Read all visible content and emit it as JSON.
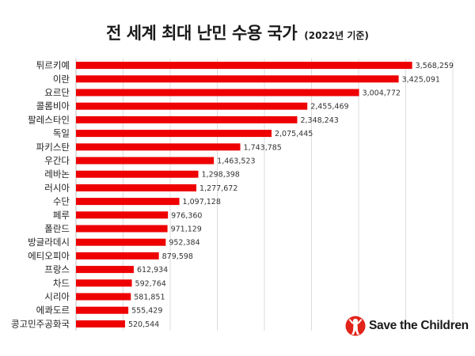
{
  "title": {
    "main": "전 세계 최대 난민 수용 국가",
    "sub": "(2022년 기준)"
  },
  "brand": {
    "name": "Save the Children",
    "accent": "#e2231a"
  },
  "chart_data": {
    "type": "bar",
    "orientation": "horizontal",
    "title": "전 세계 최대 난민 수용 국가",
    "subtitle": "(2022년 기준)",
    "xlabel": "",
    "ylabel": "",
    "xlim": [
      0,
      4000000
    ],
    "grid": true,
    "legend": "none",
    "bar_color": "#ee0000",
    "categories": [
      "튀르키예",
      "이란",
      "요르단",
      "콜롬비아",
      "팔레스타인",
      "독일",
      "파키스탄",
      "우간다",
      "레바논",
      "러시아",
      "수단",
      "페루",
      "폴란드",
      "방글라데시",
      "에티오피아",
      "프랑스",
      "차드",
      "시리아",
      "에콰도르",
      "콩고민주공화국"
    ],
    "values": [
      3568259,
      3425091,
      3004772,
      2455469,
      2348243,
      2075445,
      1743785,
      1463523,
      1298398,
      1277672,
      1097128,
      976360,
      971129,
      952384,
      879598,
      612934,
      592764,
      581851,
      555429,
      520544
    ],
    "value_labels": [
      "3,568,259",
      "3,425,091",
      "3,004,772",
      "2,455,469",
      "2,348,243",
      "2,075,445",
      "1,743,785",
      "1,463,523",
      "1,298,398",
      "1,277,672",
      "1,097,128",
      "976,360",
      "971,129",
      "952,384",
      "879,598",
      "612,934",
      "592,764",
      "581,851",
      "555,429",
      "520,544"
    ]
  }
}
